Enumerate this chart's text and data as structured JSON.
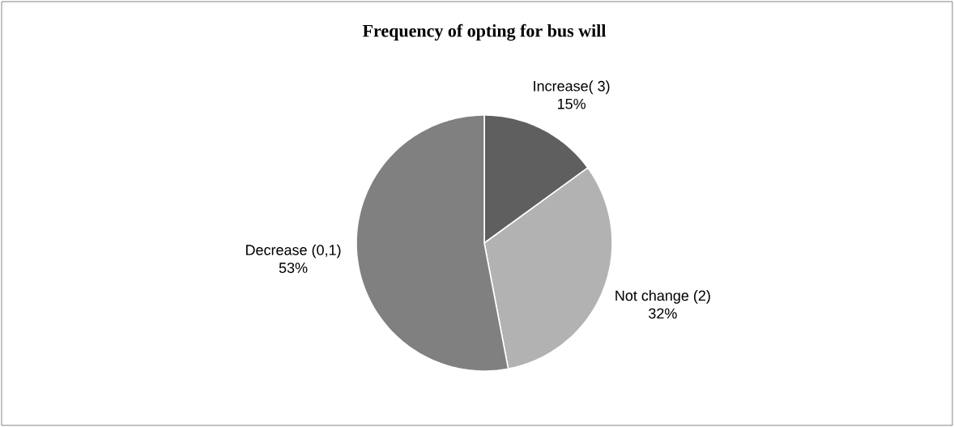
{
  "chart_data": {
    "type": "pie",
    "title": "Frequency of opting for bus will",
    "categories": [
      "Increase( 3)",
      "Not change (2)",
      "Decrease  (0,1)"
    ],
    "values": [
      15,
      32,
      53
    ],
    "colors": [
      "#5f5f5f",
      "#b2b2b2",
      "#808080"
    ],
    "value_labels": [
      "15%",
      "32%",
      "53%"
    ]
  }
}
